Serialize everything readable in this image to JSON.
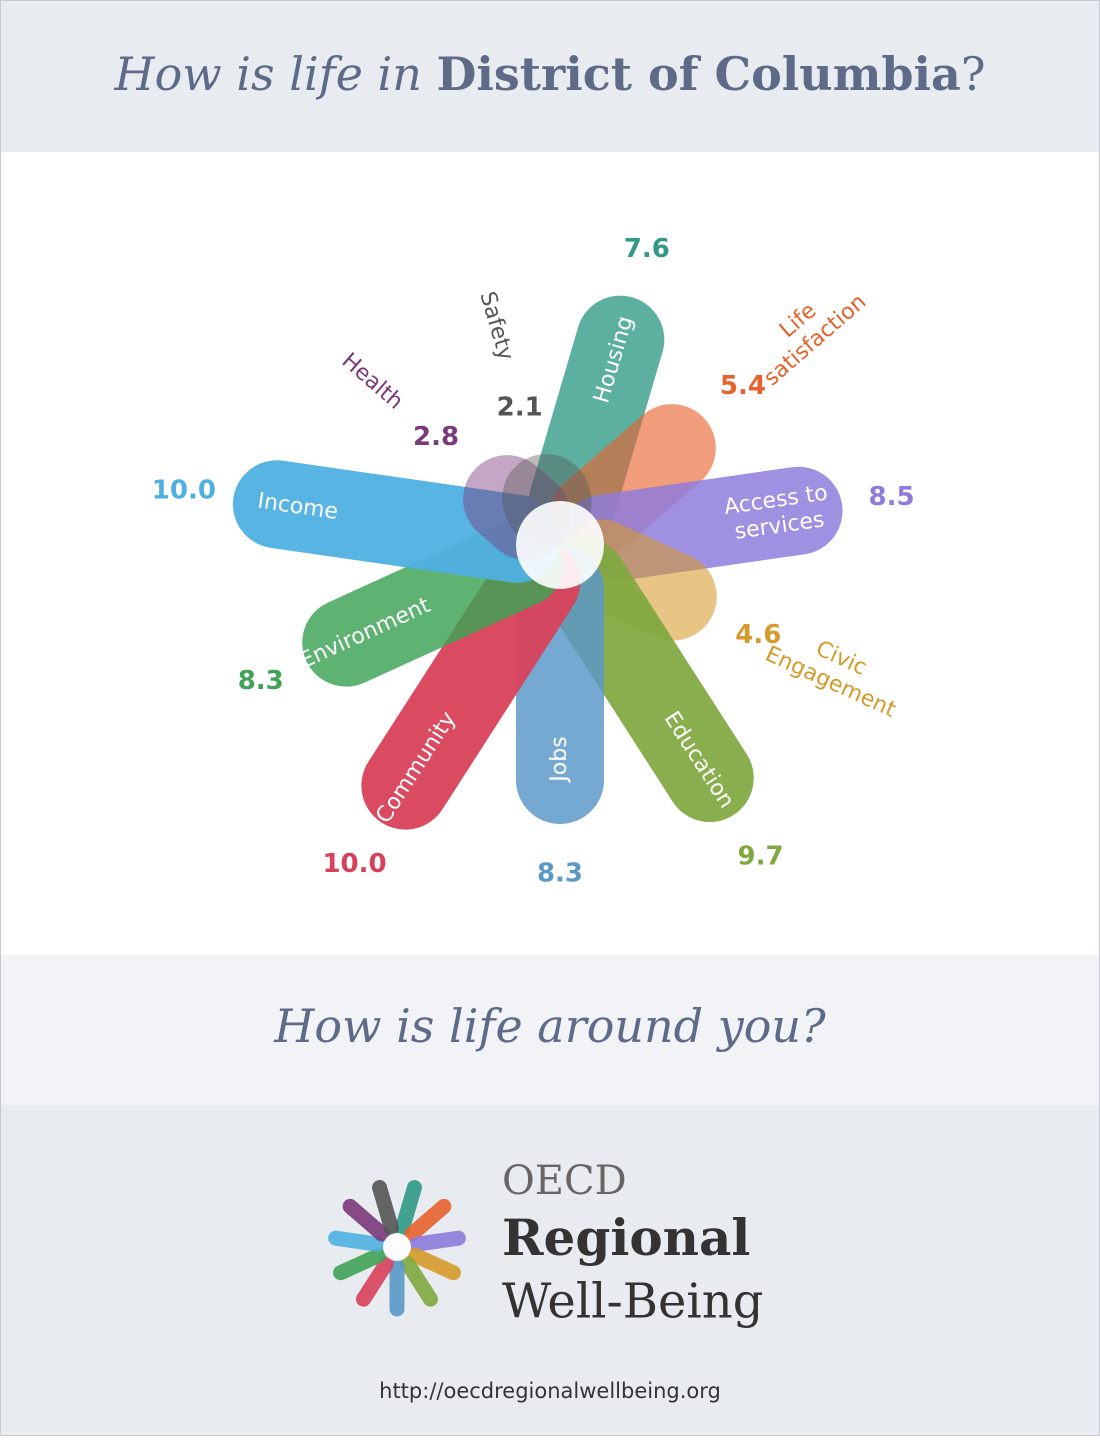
{
  "header": {
    "lead": "How is life in",
    "region": "District of Columbia",
    "end": "?"
  },
  "chart_data": {
    "type": "flower",
    "categories": [
      "Housing",
      "Life satisfaction",
      "Access to services",
      "Civic Engagement",
      "Education",
      "Jobs",
      "Community",
      "Environment",
      "Income",
      "Health",
      "Safety"
    ],
    "values": [
      7.6,
      5.4,
      8.5,
      4.6,
      9.7,
      8.3,
      10,
      8.3,
      10,
      2.8,
      2.1
    ],
    "value_labels": [
      "7.6",
      "5.4",
      "8.5",
      "4.6",
      "9.7",
      "8.3",
      "10.0",
      "8.3",
      "10.0",
      "2.8",
      "2.1"
    ],
    "colors": [
      "#2f9a85",
      "#e8622c",
      "#8e7bdc",
      "#d69a2a",
      "#7fa83f",
      "#5a98c8",
      "#d8415a",
      "#3fa356",
      "#4fb0e0",
      "#7b3a7a",
      "#555555"
    ],
    "ylim": [
      0,
      10
    ]
  },
  "prompt": "How is life around you?",
  "logo": {
    "line1": "OECD",
    "line2": "Regional",
    "line3": "Well-Being"
  },
  "url": "http://oecdregionalwellbeing.org"
}
